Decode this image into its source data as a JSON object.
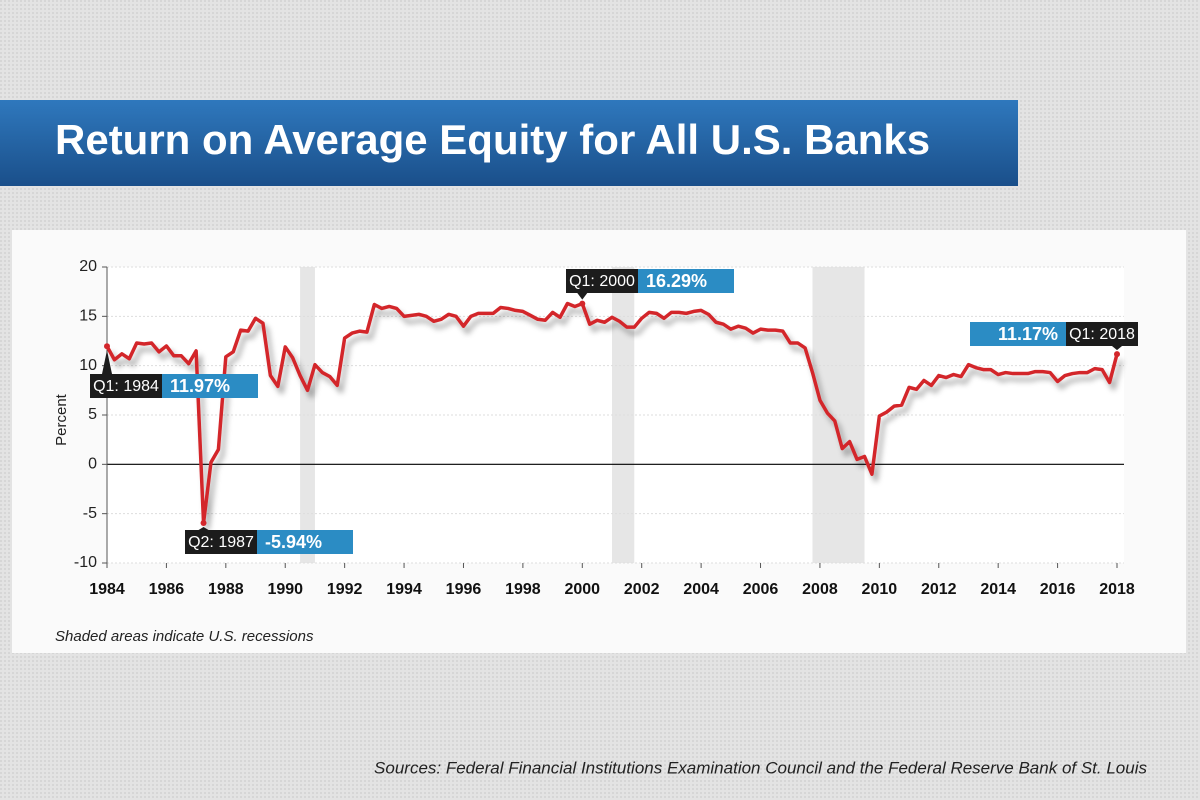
{
  "chart_data": {
    "type": "line",
    "title": "Return on Average Equity for All U.S. Banks",
    "ylabel": "Percent",
    "note": "Shaded areas indicate U.S. recessions",
    "source": "Sources: Federal Financial Institutions Examination Council and the Federal Reserve Bank of St. Louis",
    "xlim": [
      1984,
      2018
    ],
    "xticks": [
      1984,
      1986,
      1988,
      1990,
      1992,
      1994,
      1996,
      1998,
      2000,
      2002,
      2004,
      2006,
      2008,
      2010,
      2012,
      2014,
      2016,
      2018
    ],
    "ylim": [
      -10,
      20
    ],
    "yticks": [
      -10,
      -5,
      0,
      5,
      10,
      15,
      20
    ],
    "grid": true,
    "recessions": [
      [
        1990.5,
        1991.0
      ],
      [
        2001.0,
        2001.75
      ],
      [
        2007.75,
        2009.5
      ]
    ],
    "x": [
      1984,
      1984.25,
      1984.5,
      1984.75,
      1985,
      1985.25,
      1985.5,
      1985.75,
      1986,
      1986.25,
      1986.5,
      1986.75,
      1987,
      1987.25,
      1987.5,
      1987.75,
      1988,
      1988.25,
      1988.5,
      1988.75,
      1989,
      1989.25,
      1989.5,
      1989.75,
      1990,
      1990.25,
      1990.5,
      1990.75,
      1991,
      1991.25,
      1991.5,
      1991.75,
      1992,
      1992.25,
      1992.5,
      1992.75,
      1993,
      1993.25,
      1993.5,
      1993.75,
      1994,
      1994.25,
      1994.5,
      1994.75,
      1995,
      1995.25,
      1995.5,
      1995.75,
      1996,
      1996.25,
      1996.5,
      1996.75,
      1997,
      1997.25,
      1997.5,
      1997.75,
      1998,
      1998.25,
      1998.5,
      1998.75,
      1999,
      1999.25,
      1999.5,
      1999.75,
      2000,
      2000.25,
      2000.5,
      2000.75,
      2001,
      2001.25,
      2001.5,
      2001.75,
      2002,
      2002.25,
      2002.5,
      2002.75,
      2003,
      2003.25,
      2003.5,
      2003.75,
      2004,
      2004.25,
      2004.5,
      2004.75,
      2005,
      2005.25,
      2005.5,
      2005.75,
      2006,
      2006.25,
      2006.5,
      2006.75,
      2007,
      2007.25,
      2007.5,
      2007.75,
      2008,
      2008.25,
      2008.5,
      2008.75,
      2009,
      2009.25,
      2009.5,
      2009.75,
      2010,
      2010.25,
      2010.5,
      2010.75,
      2011,
      2011.25,
      2011.5,
      2011.75,
      2012,
      2012.25,
      2012.5,
      2012.75,
      2013,
      2013.25,
      2013.5,
      2013.75,
      2014,
      2014.25,
      2014.5,
      2014.75,
      2015,
      2015.25,
      2015.5,
      2015.75,
      2016,
      2016.25,
      2016.5,
      2016.75,
      2017,
      2017.25,
      2017.5,
      2017.75,
      2018
    ],
    "series": [
      {
        "name": "Return on Average Equity",
        "color": "#d3262b",
        "values": [
          11.97,
          10.6,
          11.2,
          10.7,
          12.3,
          12.2,
          12.3,
          11.4,
          12.0,
          11.0,
          11.0,
          10.2,
          11.5,
          -5.94,
          0.2,
          1.5,
          10.9,
          11.4,
          13.6,
          13.5,
          14.8,
          14.3,
          9.0,
          7.9,
          11.9,
          10.8,
          9.0,
          7.5,
          10.1,
          9.3,
          8.9,
          8.0,
          12.8,
          13.3,
          13.5,
          13.4,
          16.2,
          15.8,
          16.0,
          15.8,
          15.0,
          15.1,
          15.2,
          15.0,
          14.5,
          14.7,
          15.2,
          15.0,
          14.0,
          15.0,
          15.3,
          15.3,
          15.3,
          15.9,
          15.8,
          15.6,
          15.5,
          15.1,
          14.7,
          14.6,
          15.4,
          14.9,
          16.3,
          16.0,
          16.29,
          14.2,
          14.6,
          14.4,
          14.9,
          14.5,
          13.9,
          13.9,
          14.8,
          15.4,
          15.3,
          14.8,
          15.4,
          15.4,
          15.3,
          15.5,
          15.6,
          15.2,
          14.4,
          14.2,
          13.7,
          14.0,
          13.8,
          13.3,
          13.7,
          13.6,
          13.6,
          13.5,
          12.3,
          12.3,
          11.8,
          9.3,
          6.5,
          5.2,
          4.4,
          1.6,
          2.3,
          0.5,
          0.8,
          -1.0,
          4.9,
          5.3,
          5.9,
          6.0,
          7.8,
          7.6,
          8.5,
          8.0,
          9.0,
          8.8,
          9.1,
          8.9,
          10.1,
          9.8,
          9.6,
          9.6,
          9.1,
          9.3,
          9.2,
          9.2,
          9.2,
          9.4,
          9.4,
          9.3,
          8.4,
          9.0,
          9.2,
          9.3,
          9.3,
          9.7,
          9.6,
          8.3,
          11.17
        ]
      }
    ],
    "annotations": [
      {
        "label": "Q1: 1984",
        "value_label": "11.97%",
        "x": 1984,
        "y": 11.97
      },
      {
        "label": "Q2: 1987",
        "value_label": "-5.94%",
        "x": 1987.25,
        "y": -5.94
      },
      {
        "label": "Q1: 2000",
        "value_label": "16.29%",
        "x": 2000,
        "y": 16.29
      },
      {
        "label": "Q1: 2018",
        "value_label": "11.17%",
        "x": 2018,
        "y": 11.17
      }
    ]
  }
}
